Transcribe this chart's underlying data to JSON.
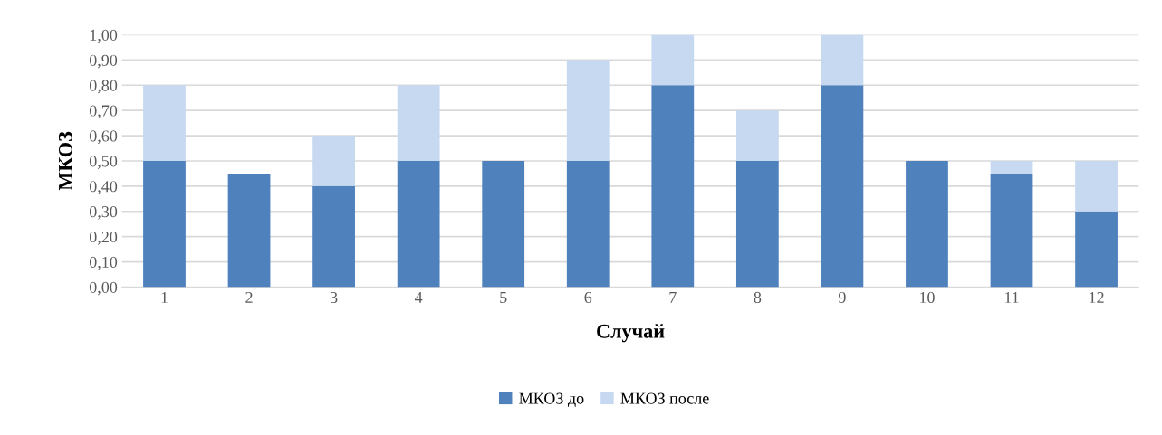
{
  "chart_data": {
    "type": "bar",
    "stacked": true,
    "xlabel": "Случай",
    "ylabel": "МКОЗ",
    "categories": [
      "1",
      "2",
      "3",
      "4",
      "5",
      "6",
      "7",
      "8",
      "9",
      "10",
      "11",
      "12"
    ],
    "series": [
      {
        "name": "МКОЗ до",
        "color": "#4f81bd",
        "values": [
          0.5,
          0.45,
          0.4,
          0.5,
          0.5,
          0.5,
          0.8,
          0.5,
          0.8,
          0.5,
          0.45,
          0.3
        ]
      },
      {
        "name": "МКОЗ после",
        "color": "#c6d9f1",
        "values": [
          0.3,
          0,
          0.2,
          0.3,
          0,
          0.4,
          0.2,
          0.2,
          0.2,
          0,
          0.05,
          0.2
        ]
      }
    ],
    "ylim": [
      0,
      1
    ],
    "yticks": [
      {
        "value": 0,
        "label": "0,00"
      },
      {
        "value": 0.1,
        "label": "0,10"
      },
      {
        "value": 0.2,
        "label": "0,20"
      },
      {
        "value": 0.3,
        "label": "0,30"
      },
      {
        "value": 0.4,
        "label": "0,40"
      },
      {
        "value": 0.5,
        "label": "0,50"
      },
      {
        "value": 0.6,
        "label": "0,60"
      },
      {
        "value": 0.7,
        "label": "0,70"
      },
      {
        "value": 0.8,
        "label": "0,80"
      },
      {
        "value": 0.9,
        "label": "0,90"
      },
      {
        "value": 1,
        "label": "1,00"
      }
    ],
    "grid": "y",
    "legend": "bottom"
  }
}
